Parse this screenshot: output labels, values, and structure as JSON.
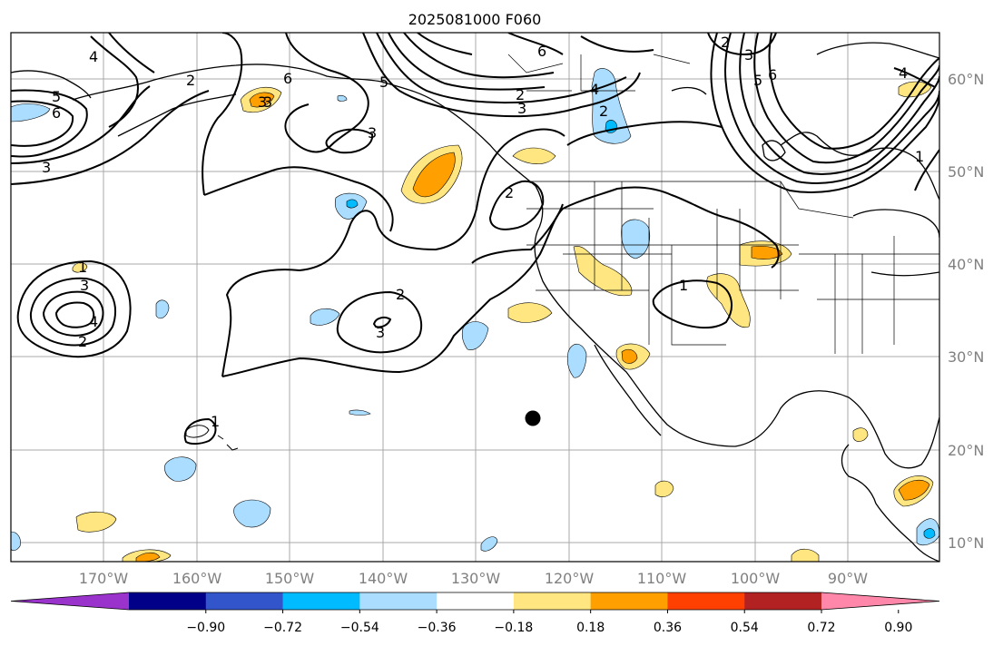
{
  "title": "2025081000 F060",
  "map": {
    "lon_labels": [
      "170°W",
      "160°W",
      "150°W",
      "140°W",
      "130°W",
      "120°W",
      "110°W",
      "100°W",
      "90°W"
    ],
    "lat_labels": [
      "60°N",
      "50°N",
      "40°N",
      "30°N",
      "20°N",
      "10°N"
    ],
    "contour_labels": [
      "6",
      "4",
      "2",
      "3",
      "5",
      "6",
      "3",
      "3",
      "2",
      "6",
      "5",
      "3",
      "4",
      "2",
      "2",
      "3",
      "5",
      "6",
      "1",
      "4",
      "2",
      "1",
      "3",
      "4",
      "3",
      "2",
      "2",
      "3",
      "1",
      "1"
    ],
    "marker": "black-dot"
  },
  "colorbar": {
    "tick_labels": [
      "−0.90",
      "−0.72",
      "−0.54",
      "−0.36",
      "−0.18",
      "0.18",
      "0.36",
      "0.54",
      "0.72",
      "0.90"
    ],
    "colors": [
      "#9933cc",
      "#000088",
      "#3355cc",
      "#00bbff",
      "#aaddff",
      "#ffffff",
      "#ffe680",
      "#ffa000",
      "#ff4000",
      "#b22222",
      "#ff88aa"
    ]
  }
}
